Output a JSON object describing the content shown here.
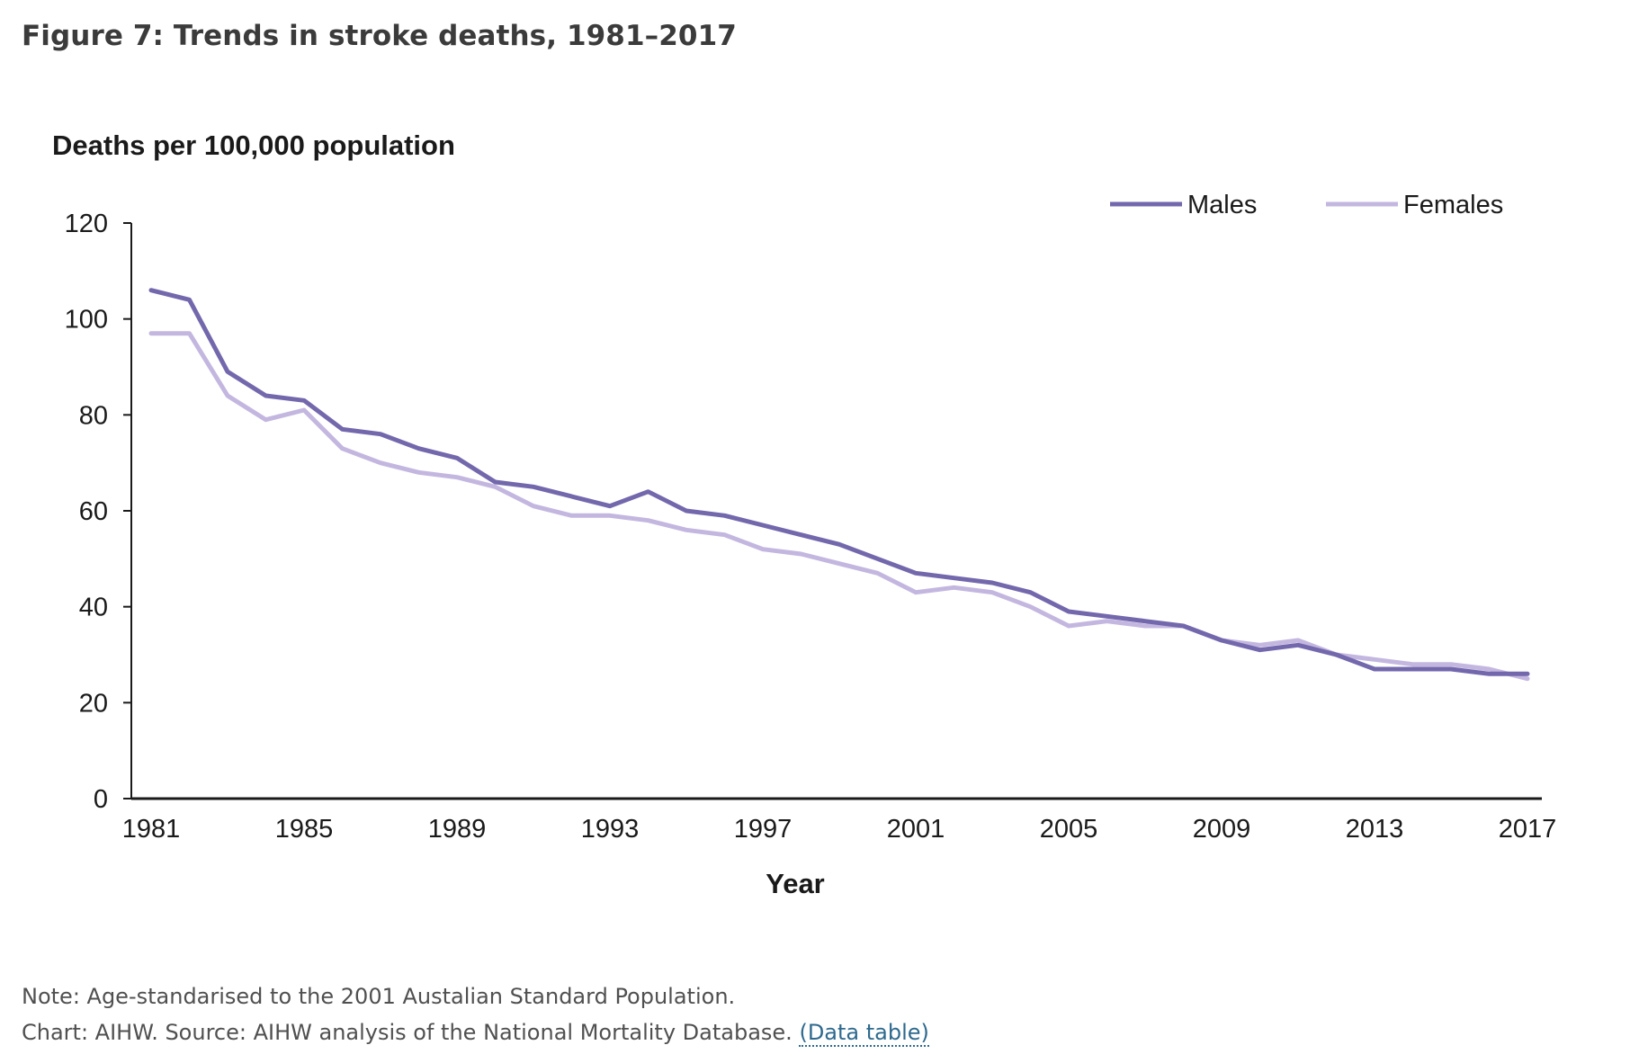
{
  "figure": {
    "title": "Figure 7: Trends in stroke deaths, 1981–2017"
  },
  "chart_data": {
    "type": "line",
    "title": "",
    "ylabel": "Deaths per 100,000 population",
    "xlabel": "Year",
    "ylim": [
      0,
      120
    ],
    "yticks": [
      0,
      20,
      40,
      60,
      80,
      100,
      120
    ],
    "xlim": [
      1981,
      2017
    ],
    "xticks": [
      1981,
      1985,
      1989,
      1993,
      1997,
      2001,
      2005,
      2009,
      2013,
      2017
    ],
    "grid": false,
    "legend_position": "top-right",
    "x": [
      1981,
      1982,
      1983,
      1984,
      1985,
      1986,
      1987,
      1988,
      1989,
      1990,
      1991,
      1992,
      1993,
      1994,
      1995,
      1996,
      1997,
      1998,
      1999,
      2000,
      2001,
      2002,
      2003,
      2004,
      2005,
      2006,
      2007,
      2008,
      2009,
      2010,
      2011,
      2012,
      2013,
      2014,
      2015,
      2016,
      2017
    ],
    "series": [
      {
        "name": "Males",
        "color": "#7468ad",
        "values": [
          106,
          104,
          89,
          84,
          83,
          77,
          76,
          73,
          71,
          66,
          65,
          63,
          61,
          64,
          60,
          59,
          57,
          55,
          53,
          50,
          47,
          46,
          45,
          43,
          39,
          38,
          37,
          36,
          33,
          31,
          32,
          30,
          27,
          27,
          27,
          26,
          26
        ]
      },
      {
        "name": "Females",
        "color": "#c3b7e0",
        "values": [
          97,
          97,
          84,
          79,
          81,
          73,
          70,
          68,
          67,
          65,
          61,
          59,
          59,
          58,
          56,
          55,
          52,
          51,
          49,
          47,
          43,
          44,
          43,
          40,
          36,
          37,
          36,
          36,
          33,
          32,
          33,
          30,
          29,
          28,
          28,
          27,
          25
        ]
      }
    ]
  },
  "notes": {
    "line1": "Note: Age-standarised to the 2001 Austalian Standard Population.",
    "line2": "Chart: AIHW. Source: AIHW analysis of the National Mortality Database.",
    "link_label": "(Data table)"
  }
}
